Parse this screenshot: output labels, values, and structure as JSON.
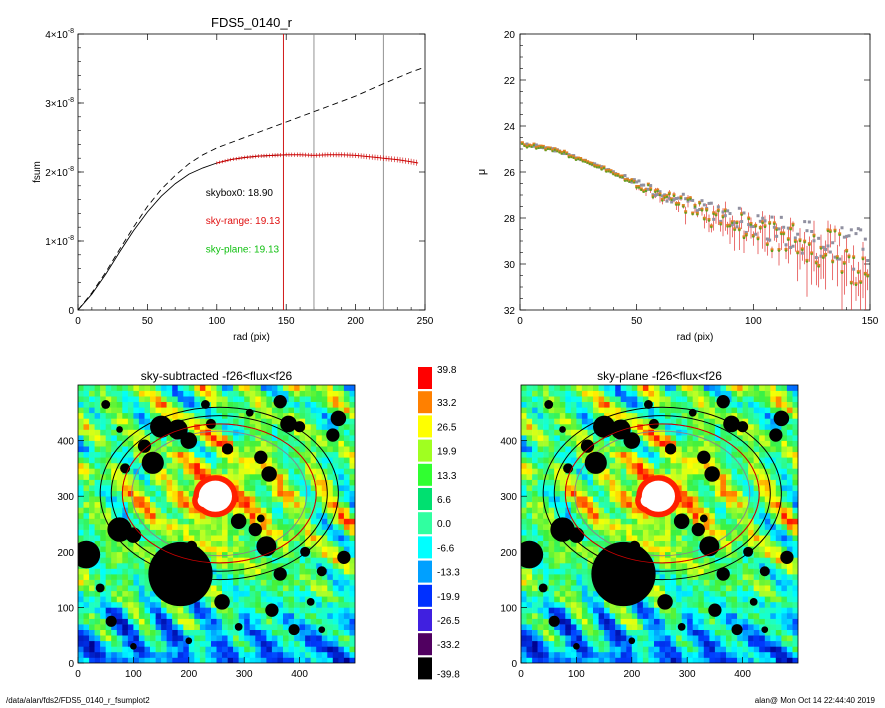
{
  "footer": {
    "path": "/data/alan/fds2/FDS5_0140_r_fsumplot2",
    "user_date": "alan@  Mon Oct 14 22:44:40 2019"
  },
  "chart_data": [
    {
      "id": "growth-curve",
      "type": "line",
      "title": "FDS5_0140_r",
      "xlabel": "rad (pix)",
      "ylabel": "fsum",
      "xlim": [
        0,
        250
      ],
      "ylim": [
        0,
        4e-08
      ],
      "x_ticks": [
        0,
        50,
        100,
        150,
        200,
        250
      ],
      "y_tick_values": [
        0,
        1e-08,
        2e-08,
        3e-08,
        4e-08
      ],
      "y_tick_mantissa": [
        "0",
        "1",
        "2",
        "3",
        "4"
      ],
      "y_tick_base": "×10",
      "y_tick_exp": "-8",
      "vlines": [
        {
          "x": 148,
          "color": "#cc0000"
        },
        {
          "x": 170,
          "color": "#888888"
        },
        {
          "x": 220,
          "color": "#888888"
        }
      ],
      "series": [
        {
          "style": "dashed",
          "color": "#000000",
          "x": [
            0,
            10,
            20,
            30,
            40,
            50,
            60,
            70,
            80,
            90,
            100,
            120,
            140,
            160,
            180,
            200,
            220,
            240,
            250
          ],
          "y": [
            0,
            2.5e-09,
            5.5e-09,
            8.8e-09,
            1.2e-08,
            1.5e-08,
            1.75e-08,
            1.95e-08,
            2.12e-08,
            2.25e-08,
            2.35e-08,
            2.5e-08,
            2.65e-08,
            2.8e-08,
            2.95e-08,
            3.1e-08,
            3.28e-08,
            3.45e-08,
            3.52e-08
          ]
        },
        {
          "style": "solid",
          "color": "#000000",
          "x": [
            0,
            10,
            20,
            30,
            40,
            50,
            60,
            70,
            80,
            90,
            100,
            110,
            120,
            130,
            140,
            150
          ],
          "y": [
            0,
            2.3e-09,
            5.2e-09,
            8.4e-09,
            1.15e-08,
            1.42e-08,
            1.65e-08,
            1.83e-08,
            1.97e-08,
            2.06e-08,
            2.13e-08,
            2.18e-08,
            2.21e-08,
            2.23e-08,
            2.24e-08,
            2.25e-08
          ]
        },
        {
          "style": "errorbars",
          "color": "#cc0000",
          "x": [
            100,
            110,
            120,
            130,
            140,
            150,
            160,
            170,
            180,
            190,
            200,
            210,
            220,
            230,
            240,
            245
          ],
          "y": [
            2.13e-08,
            2.18e-08,
            2.21e-08,
            2.23e-08,
            2.24e-08,
            2.25e-08,
            2.25e-08,
            2.24e-08,
            2.25e-08,
            2.25e-08,
            2.24e-08,
            2.22e-08,
            2.2e-08,
            2.18e-08,
            2.15e-08,
            2.13e-08
          ],
          "err": 4e-10
        }
      ],
      "annotations": [
        {
          "text": "skybox0: 18.90",
          "color": "#000000",
          "x": 92,
          "y": 1.65e-08
        },
        {
          "text": "sky-range: 19.13",
          "color": "#e01010",
          "x": 92,
          "y": 1.25e-08
        },
        {
          "text": "sky-plane: 19.13",
          "color": "#10c010",
          "x": 92,
          "y": 8.3e-09
        }
      ]
    },
    {
      "id": "sb-profile",
      "type": "scatter",
      "title": "",
      "xlabel": "rad (pix)",
      "ylabel": "μ",
      "xlim": [
        0,
        150
      ],
      "ylim": [
        32,
        20
      ],
      "x_ticks": [
        0,
        50,
        100,
        150
      ],
      "y_ticks": [
        20,
        22,
        24,
        26,
        28,
        30,
        32
      ],
      "profile": {
        "r": [
          1,
          10,
          20,
          30,
          40,
          50,
          60,
          70,
          80,
          90,
          100,
          110,
          120,
          130,
          140,
          150
        ],
        "mu": [
          24.8,
          24.9,
          25.2,
          25.6,
          26.0,
          26.5,
          27.0,
          27.4,
          27.8,
          28.1,
          28.5,
          28.8,
          29.1,
          29.4,
          29.7,
          30.0
        ]
      }
    },
    {
      "id": "sky-subtracted",
      "type": "heatmap",
      "title": "sky-subtracted -f26<flux<f26",
      "xlim": [
        0,
        500
      ],
      "ylim": [
        0,
        500
      ],
      "x_ticks": [
        0,
        100,
        200,
        300,
        400
      ],
      "y_ticks": [
        0,
        100,
        200,
        300,
        400
      ]
    },
    {
      "id": "sky-plane",
      "type": "heatmap",
      "title": "sky-plane -f26<flux<f26",
      "xlim": [
        0,
        500
      ],
      "ylim": [
        0,
        500
      ],
      "x_ticks": [
        0,
        100,
        200,
        300,
        400
      ],
      "y_ticks": [
        0,
        100,
        200,
        300,
        400
      ]
    }
  ],
  "colorbar": {
    "labels": [
      "39.8",
      "33.2",
      "26.5",
      "19.9",
      "13.3",
      "6.6",
      "0.0",
      "-6.6",
      "-13.3",
      "-19.9",
      "-26.5",
      "-33.2",
      "-39.8"
    ],
    "colors": [
      "#ff0000",
      "#ff8000",
      "#ffff00",
      "#a0ff20",
      "#30ff30",
      "#00e070",
      "#30ffa0",
      "#00ffff",
      "#00a0ff",
      "#0030ff",
      "#4020e0",
      "#500060",
      "#000000"
    ]
  },
  "image_model": {
    "galaxy_center": [
      255,
      305
    ],
    "ellipses": [
      {
        "a": 215,
        "b": 155,
        "color": "#000000"
      },
      {
        "a": 195,
        "b": 140,
        "color": "#000000"
      },
      {
        "a": 175,
        "b": 125,
        "color": "#cc0000"
      },
      {
        "a": 158,
        "b": 112,
        "color": "#888888"
      }
    ],
    "saturated_core": [
      [
        248,
        300,
        30,
        28
      ],
      [
        230,
        292,
        14,
        12
      ],
      [
        262,
        310,
        12,
        10
      ]
    ],
    "masks": [
      [
        185,
        160,
        58
      ],
      [
        15,
        195,
        25
      ],
      [
        150,
        425,
        20
      ],
      [
        180,
        420,
        18
      ],
      [
        200,
        400,
        15
      ],
      [
        135,
        360,
        20
      ],
      [
        120,
        390,
        12
      ],
      [
        75,
        240,
        22
      ],
      [
        100,
        230,
        14
      ],
      [
        340,
        210,
        18
      ],
      [
        365,
        160,
        12
      ],
      [
        260,
        110,
        14
      ],
      [
        350,
        95,
        12
      ],
      [
        365,
        470,
        12
      ],
      [
        380,
        430,
        15
      ],
      [
        400,
        425,
        10
      ],
      [
        345,
        340,
        14
      ],
      [
        330,
        370,
        12
      ],
      [
        270,
        385,
        10
      ],
      [
        460,
        410,
        12
      ],
      [
        470,
        440,
        14
      ],
      [
        480,
        190,
        12
      ],
      [
        410,
        200,
        9
      ],
      [
        440,
        165,
        9
      ],
      [
        390,
        60,
        10
      ],
      [
        60,
        75,
        10
      ],
      [
        40,
        135,
        8
      ],
      [
        85,
        350,
        9
      ],
      [
        140,
        165,
        12
      ],
      [
        290,
        255,
        14
      ],
      [
        320,
        240,
        12
      ],
      [
        230,
        465,
        8
      ],
      [
        240,
        430,
        9
      ],
      [
        310,
        450,
        7
      ],
      [
        50,
        465,
        8
      ],
      [
        75,
        420,
        6
      ],
      [
        420,
        110,
        7
      ],
      [
        440,
        60,
        6
      ],
      [
        100,
        30,
        6
      ],
      [
        200,
        40,
        6
      ],
      [
        290,
        65,
        7
      ],
      [
        330,
        260,
        7
      ],
      [
        205,
        210,
        10
      ]
    ]
  }
}
